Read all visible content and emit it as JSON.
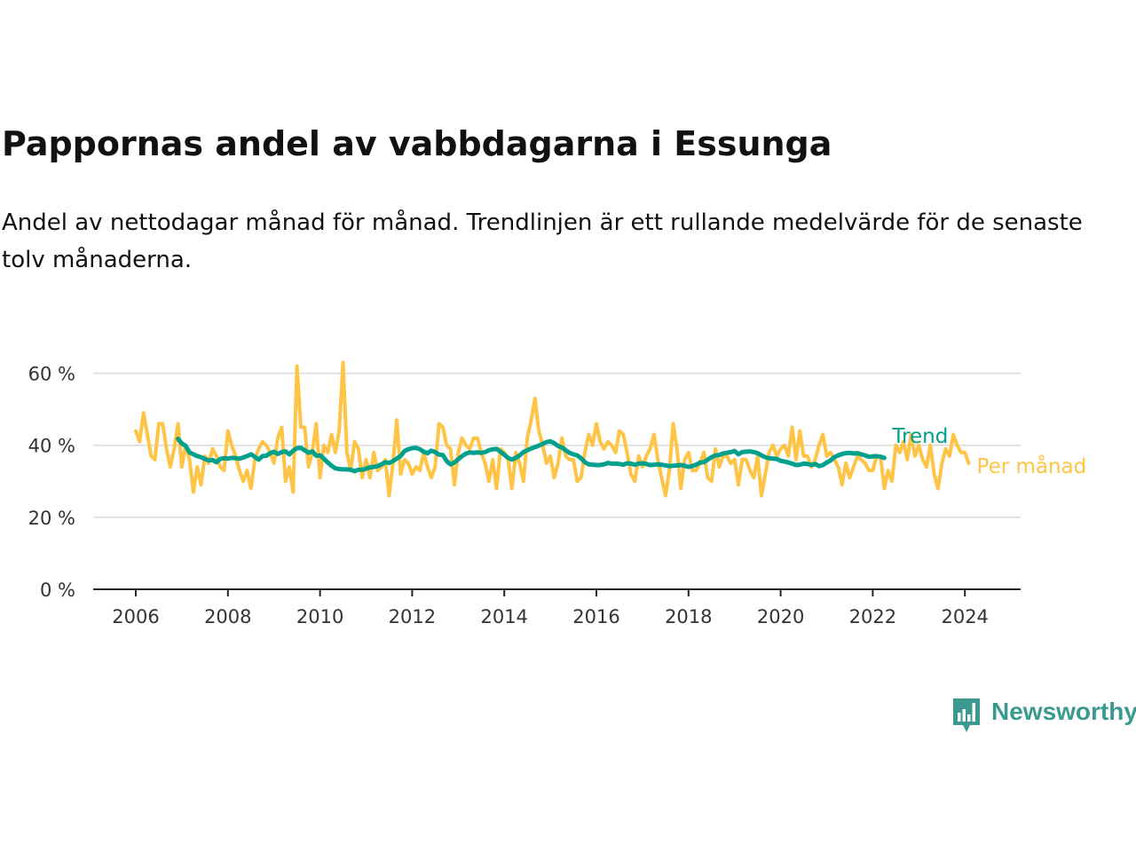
{
  "title": "Pappornas andel av vabbdagarna i Essunga",
  "subtitle": "Andel av nettodagar månad för månad. Trendlinjen är ett rullande medelvärde för de senaste tolv månaderna.",
  "brand": {
    "name": "Newsworthy",
    "color": "#3a9a8f",
    "icon": "newsworthy-bar-chart-speech-bubble-icon"
  },
  "chart_data": {
    "type": "line",
    "title": "Pappornas andel av vabbdagarna i Essunga",
    "xlabel": "",
    "ylabel": "",
    "xlim": [
      "2006-01",
      "2024-12"
    ],
    "ylim": [
      0,
      70
    ],
    "grid": true,
    "legend": "right, at line ends",
    "x_tick_labels": [
      "2006",
      "2008",
      "2010",
      "2012",
      "2014",
      "2016",
      "2018",
      "2020",
      "2022",
      "2024"
    ],
    "y_tick_labels": [
      "0 %",
      "20 %",
      "40 %",
      "60 %"
    ],
    "y_ticks": [
      0,
      20,
      40,
      60
    ],
    "series": [
      {
        "name": "Per månad",
        "color": "#ffc445",
        "start": "2006-01",
        "values": [
          44,
          41,
          49,
          43,
          37,
          36,
          46,
          46,
          39,
          34,
          39,
          46,
          34,
          40,
          36,
          27,
          34,
          29,
          37,
          35,
          39,
          37,
          34,
          33,
          44,
          40,
          37,
          33,
          30,
          33,
          28,
          36,
          39,
          41,
          40,
          38,
          35,
          42,
          45,
          30,
          34,
          27,
          62,
          45,
          45,
          34,
          38,
          46,
          31,
          40,
          38,
          43,
          38,
          44,
          63,
          38,
          33,
          41,
          39,
          31,
          36,
          31,
          38,
          33,
          34,
          36,
          26,
          35,
          47,
          32,
          36,
          35,
          32,
          34,
          33,
          38,
          34,
          31,
          34,
          46,
          45,
          40,
          39,
          29,
          38,
          42,
          40,
          39,
          42,
          42,
          38,
          35,
          30,
          36,
          28,
          39,
          38,
          36,
          28,
          38,
          35,
          30,
          42,
          47,
          53,
          44,
          40,
          35,
          37,
          31,
          35,
          42,
          37,
          36,
          36,
          30,
          31,
          38,
          43,
          40,
          46,
          41,
          39,
          41,
          40,
          38,
          44,
          43,
          38,
          32,
          30,
          37,
          34,
          37,
          39,
          43,
          36,
          31,
          26,
          33,
          46,
          39,
          28,
          36,
          38,
          33,
          33,
          35,
          38,
          31,
          30,
          39,
          34,
          37,
          37,
          35,
          36,
          29,
          36,
          36,
          33,
          31,
          37,
          26,
          32,
          38,
          40,
          37,
          39,
          40,
          37,
          45,
          36,
          44,
          37,
          37,
          34,
          36,
          40,
          43,
          37,
          38,
          36,
          34,
          29,
          35,
          31,
          34,
          37,
          36,
          35,
          33,
          33,
          37,
          37,
          28,
          33,
          30,
          40,
          38,
          41,
          36,
          43,
          37,
          40,
          36,
          34,
          40,
          32,
          28,
          35,
          39,
          37,
          43,
          40,
          38,
          38,
          35
        ]
      },
      {
        "name": "Trend",
        "color": "#00a08c",
        "start": "2006-12",
        "values": [
          41.8,
          40.5,
          39.8,
          38,
          37.5,
          37,
          36.7,
          36.2,
          35.8,
          35.9,
          35.3,
          36.2,
          36.4,
          36.3,
          36.5,
          36.4,
          36.3,
          36.6,
          37,
          37.5,
          36.8,
          36,
          37,
          37.1,
          37.8,
          38.2,
          37.6,
          38.1,
          38.3,
          37.5,
          38.5,
          39.2,
          39.3,
          38.6,
          37.9,
          38.3,
          37.1,
          37.2,
          36.3,
          35.2,
          34.3,
          33.6,
          33.4,
          33.3,
          33.3,
          33.2,
          32.8,
          33.2,
          33.2,
          33.5,
          33.9,
          34,
          34.2,
          34.7,
          35.3,
          35.1,
          35.6,
          36.3,
          37,
          38.4,
          38.9,
          39.2,
          39.3,
          38.9,
          38.2,
          37.8,
          38.5,
          38.1,
          37.4,
          37.3,
          35.6,
          34.7,
          35.2,
          36.1,
          37,
          37.7,
          38,
          37.9,
          38,
          37.9,
          38.1,
          38.6,
          38.9,
          39,
          38.2,
          37.4,
          36.5,
          36,
          36.5,
          37.2,
          38.1,
          38.6,
          39.1,
          39.5,
          39.9,
          40.4,
          40.9,
          41.1,
          40.6,
          39.8,
          39.4,
          38.6,
          37.9,
          37.5,
          37.2,
          36.4,
          35.3,
          34.7,
          34.6,
          34.5,
          34.5,
          34.7,
          35.1,
          34.9,
          34.9,
          34.8,
          34.6,
          35,
          34.9,
          34.6,
          34.9,
          35,
          34.8,
          34.5,
          34.6,
          34.7,
          34.6,
          34.4,
          34.2,
          34.3,
          34.4,
          34.5,
          34.3,
          34,
          34.2,
          34.6,
          35.2,
          35.3,
          36,
          36.7,
          37.2,
          37.3,
          37.7,
          37.9,
          38.1,
          38.4,
          37.5,
          38.1,
          38.2,
          38.3,
          38.1,
          37.8,
          37.2,
          36.7,
          36.4,
          36.3,
          36.2,
          35.7,
          35.5,
          35.2,
          34.9,
          34.5,
          34.6,
          34.9,
          34.8,
          34.5,
          34.8,
          34.2,
          34.5,
          35.2,
          35.8,
          36.7,
          37.2,
          37.6,
          37.8,
          37.9,
          37.7,
          37.8,
          37.5,
          37.2,
          36.8,
          36.9,
          37,
          36.8,
          36.5
        ]
      }
    ]
  }
}
